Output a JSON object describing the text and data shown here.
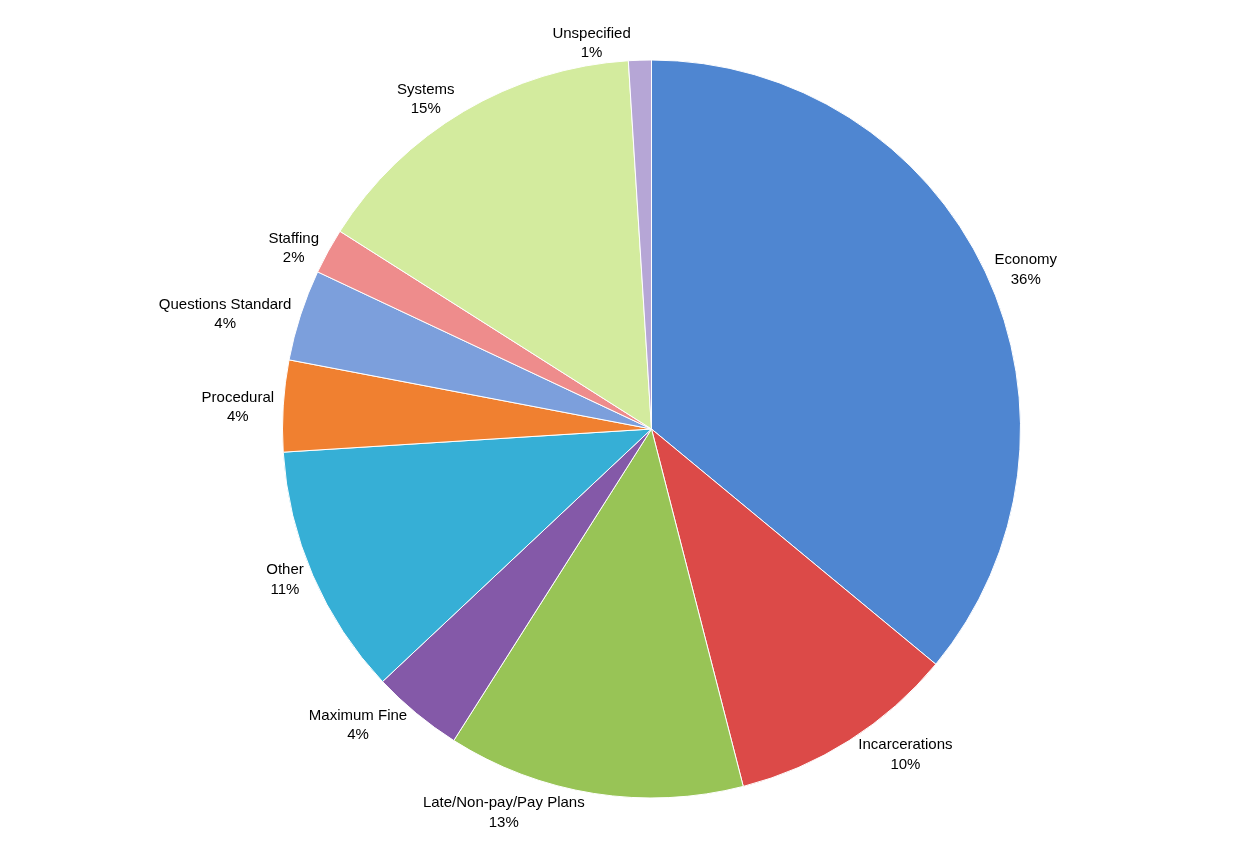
{
  "chart_data": {
    "type": "pie",
    "categories": [
      "Economy",
      "Incarcerations",
      "Late/Non-pay/Pay Plans",
      "Maximum Fine",
      "Other",
      "Procedural",
      "Questions Standard",
      "Staffing",
      "Systems",
      "Unspecified"
    ],
    "values": [
      36,
      10,
      13,
      4,
      11,
      4,
      4,
      2,
      15,
      1
    ],
    "value_labels": [
      "36%",
      "10%",
      "13%",
      "4%",
      "11%",
      "4%",
      "4%",
      "2%",
      "15%",
      "1%"
    ],
    "colors": [
      "#4f86d1",
      "#dc4a48",
      "#98c456",
      "#8459a8",
      "#36afd6",
      "#f08030",
      "#7c9fdc",
      "#ee8c8c",
      "#d3eb9e",
      "#b6a6d6"
    ],
    "legend": false
  }
}
